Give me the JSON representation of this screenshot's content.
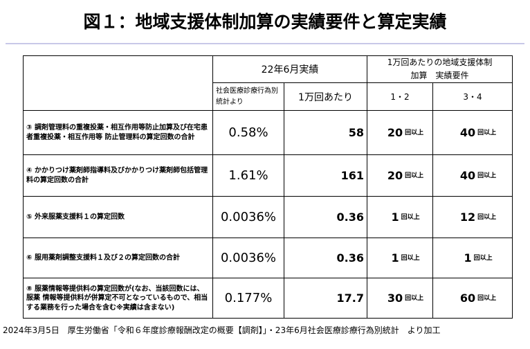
{
  "header": {
    "title": "図１：地域支援体制加算の実績要件と算定実績"
  },
  "table": {
    "period": "22年6月実績",
    "source": "社会医療診療行為別統計より",
    "per10k": "1万回あたり",
    "requirement": "1万回あたりの地域支援体制\n加算　実績要件",
    "req_cols": [
      "1・2",
      "3・4"
    ],
    "rows": [
      {
        "label": "③ 調剤管理料の重複投薬・相互作用等防止加算及び在宅患者重複投薬・相互作用等 防止管理料の算定回数の合計",
        "rate": "0.58%",
        "per10k": "58",
        "req": [
          {
            "value": "20",
            "unit": "回以上"
          },
          {
            "value": "40",
            "unit": "回以上"
          }
        ]
      },
      {
        "label": "④ かかりつけ薬剤師指導料及びかかりつけ薬剤師包括管理料の算定回数の合計",
        "rate": "1.61%",
        "per10k": "161",
        "req": [
          {
            "value": "20",
            "unit": "回以上"
          },
          {
            "value": "40",
            "unit": "回以上"
          }
        ]
      },
      {
        "label": "⑤ 外来服薬支援料１の算定回数",
        "rate": "0.0036%",
        "per10k": "0.36",
        "req": [
          {
            "value": "1",
            "unit": "回以上"
          },
          {
            "value": "12",
            "unit": "回以上"
          }
        ]
      },
      {
        "label": "⑥ 服用薬剤調整支援料１及び２の算定回数の合計",
        "rate": "0.0036%",
        "per10k": "0.36",
        "req": [
          {
            "value": "1",
            "unit": "回以上"
          },
          {
            "value": "1",
            "unit": "回以上"
          }
        ]
      },
      {
        "label": "⑧ 服薬情報等提供料の算定回数が(なお、当該回数には、服薬 情報等提供料が併算定不可となっているもので、相当する業務を行った場合を含む※実績は含まない)",
        "rate": "0.177%",
        "per10k": "17.7",
        "req": [
          {
            "value": "30",
            "unit": "回以上"
          },
          {
            "value": "60",
            "unit": "回以上"
          }
        ]
      }
    ]
  },
  "footer": "2024年3月5日　厚生労働省「令和６年度診療報酬改定の概要【調剤】」・23年6月社会医療診療行為別統計　より加工"
}
